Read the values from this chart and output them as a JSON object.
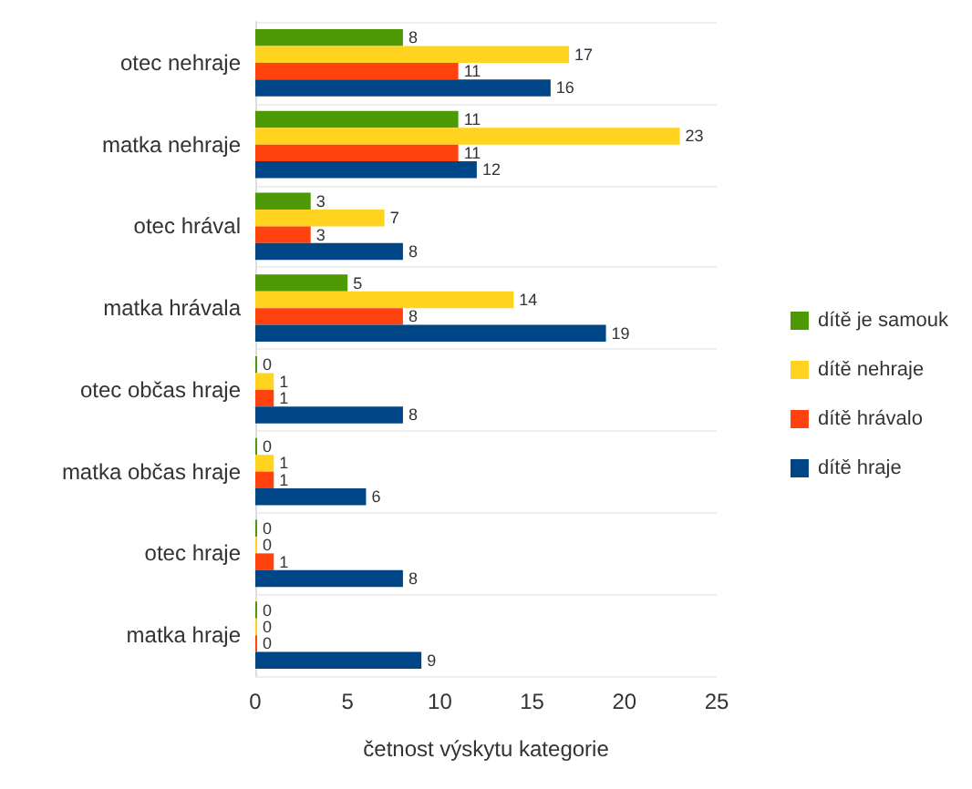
{
  "chart_data": {
    "type": "bar",
    "orientation": "horizontal",
    "xlabel": "četnost výskytu kategorie",
    "categories": [
      "otec nehraje",
      "matka nehraje",
      "otec hrával",
      "matka hrávala",
      "otec občas hraje",
      "matka občas hraje",
      "otec hraje",
      "matka hraje"
    ],
    "series": [
      {
        "name": "dítě je samouk",
        "color": "#4e9a06",
        "values": [
          8,
          11,
          3,
          5,
          0,
          0,
          0,
          0
        ]
      },
      {
        "name": "dítě nehraje",
        "color": "#ffd320",
        "values": [
          17,
          23,
          7,
          14,
          1,
          1,
          0,
          0
        ]
      },
      {
        "name": "dítě hrávalo",
        "color": "#ff420e",
        "values": [
          11,
          11,
          3,
          8,
          1,
          1,
          1,
          0
        ]
      },
      {
        "name": "dítě hraje",
        "color": "#004586",
        "values": [
          16,
          12,
          8,
          19,
          8,
          6,
          8,
          9
        ]
      }
    ],
    "xlim": [
      0,
      25
    ],
    "xticks": [
      0,
      5,
      10,
      15,
      20,
      25
    ],
    "data_labels": true,
    "legend": "right",
    "grid": false
  }
}
